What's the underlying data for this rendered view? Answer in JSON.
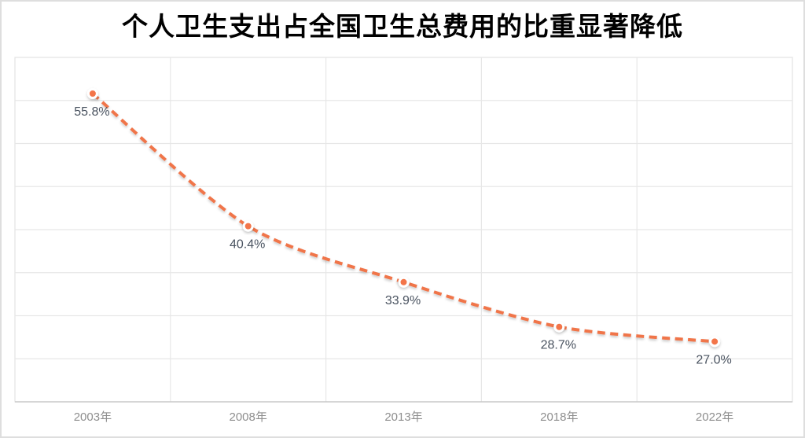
{
  "page": {
    "background": "#ffffff",
    "outer_border_color": "#dedede"
  },
  "chart_data": {
    "type": "line",
    "title": "个人卫生支出占全国卫生总费用的比重显著降低",
    "categories": [
      "2003年",
      "2008年",
      "2013年",
      "2018年",
      "2022年"
    ],
    "values": [
      55.8,
      40.4,
      33.9,
      28.7,
      27.0
    ],
    "point_labels": [
      "55.8%",
      "40.4%",
      "33.9%",
      "28.7%",
      "27.0%"
    ],
    "ylim": [
      20,
      60
    ],
    "y_grid_step": 5,
    "grid": true,
    "legend": "none",
    "y_axis_labels_visible": false,
    "line": {
      "style": "dashed",
      "smooth": true,
      "color": "#f0744a",
      "width": 4
    },
    "marker": {
      "fill": "#f3744a",
      "ring_color": "#ffffff",
      "radius": 5.5
    },
    "colors": {
      "title_text": "#000000",
      "data_label_text": "#4a5360",
      "axis_label_text": "#8e8e8e",
      "gridline": "#e7e7e7",
      "plot_border": "#e3e3e3",
      "axis_line": "#c9c9c9"
    }
  }
}
